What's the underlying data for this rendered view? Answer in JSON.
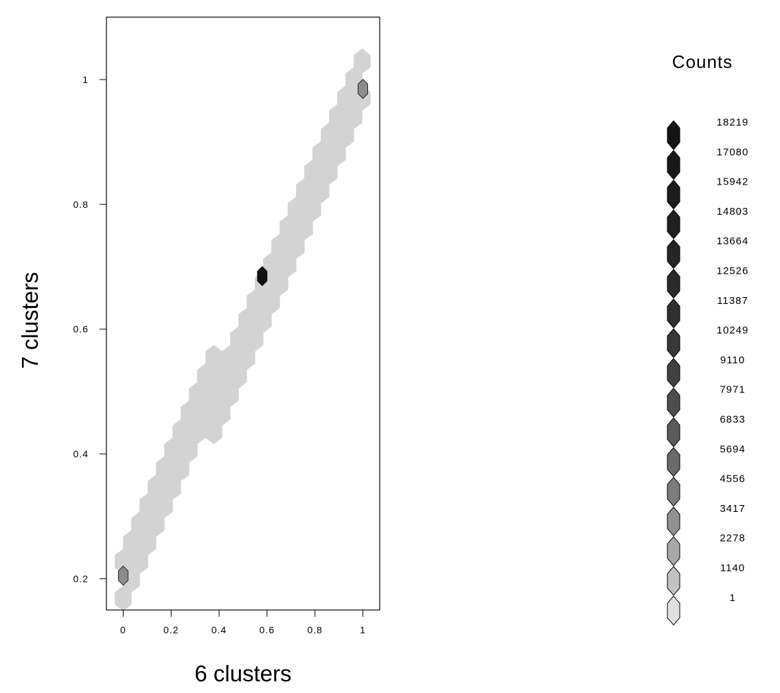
{
  "chart_data": {
    "type": "heatmap",
    "subtype": "hexbin",
    "xlabel": "6 clusters",
    "ylabel": "7 clusters",
    "xlim": [
      -0.07,
      1.07
    ],
    "ylim": [
      0.15,
      1.1
    ],
    "x_ticks": [
      "0",
      "0.2",
      "0.4",
      "0.6",
      "0.8",
      "1"
    ],
    "y_ticks": [
      "0.2",
      "0.4",
      "0.6",
      "0.8",
      "1"
    ],
    "grid": false,
    "band": {
      "description_values": "dense diagonal band of low-count hexagons along y = 0.2 + 0.78x",
      "slope": 0.78,
      "intercept": 0.2,
      "half_width_y": 0.06,
      "fill_color": "#d3d3d3"
    },
    "highlight_cells": [
      {
        "x": 0.0,
        "y": 0.205,
        "count": 4556,
        "color": "#8c8c8c"
      },
      {
        "x": 0.58,
        "y": 0.685,
        "count": 18219,
        "color": "#111111"
      },
      {
        "x": 1.0,
        "y": 0.985,
        "count": 4556,
        "color": "#8c8c8c"
      }
    ],
    "legend": {
      "title": "Counts",
      "placement": "right",
      "entries": [
        {
          "label": "18219",
          "color": "#141414"
        },
        {
          "label": "17080",
          "color": "#181818"
        },
        {
          "label": "15942",
          "color": "#1c1c1c"
        },
        {
          "label": "14803",
          "color": "#202020"
        },
        {
          "label": "13664",
          "color": "#252525"
        },
        {
          "label": "12526",
          "color": "#2a2a2a"
        },
        {
          "label": "11387",
          "color": "#303030"
        },
        {
          "label": "10249",
          "color": "#383838"
        },
        {
          "label": "9110",
          "color": "#414141"
        },
        {
          "label": "7971",
          "color": "#4d4d4d"
        },
        {
          "label": "6833",
          "color": "#5a5a5a"
        },
        {
          "label": "5694",
          "color": "#6a6a6a"
        },
        {
          "label": "4556",
          "color": "#7c7c7c"
        },
        {
          "label": "3417",
          "color": "#919191"
        },
        {
          "label": "2278",
          "color": "#a8a8a8"
        },
        {
          "label": "1140",
          "color": "#c2c2c2"
        },
        {
          "label": "1",
          "color": "#e0e0e0"
        }
      ]
    }
  }
}
